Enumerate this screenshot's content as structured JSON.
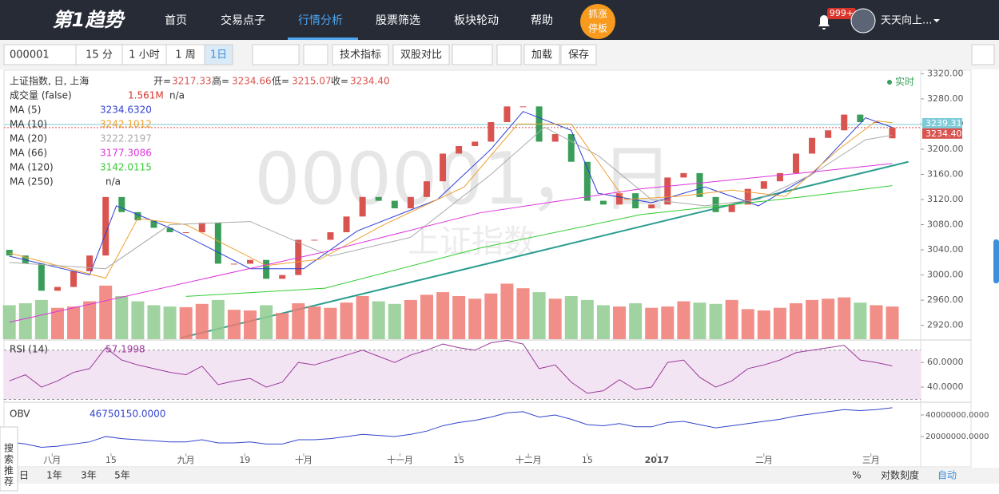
{
  "ui": {
    "logo": "第1趋势",
    "nav": [
      "首页",
      "交易点子",
      "行情分析",
      "股票筛选",
      "板块轮动",
      "帮助"
    ],
    "promo": [
      "抓涨",
      "停板"
    ],
    "badge": "999+",
    "user": "天天向上...",
    "toolbar": {
      "code": "000001",
      "periods": [
        "15 分",
        "1 小时",
        "1 周",
        "1日"
      ],
      "buttons": [
        "技术指标",
        "双股对比",
        "加载",
        "保存"
      ]
    },
    "info": {
      "name": "上证指数, 日, 上海",
      "open_label": "开=",
      "open": "3217.33",
      "high_label": "高=",
      "high": "3234.66",
      "low_label": "低=",
      "low": "3215.07",
      "close_label": "收=",
      "close": "3234.40"
    },
    "volume_legend": {
      "label": "成交量 (false)",
      "value": "1.561M",
      "extra": "n/a"
    },
    "ma250": {
      "label": "MA (250)",
      "value": "n/a"
    },
    "realtime": "实时",
    "watermark": "000001，日",
    "watermark_sub": "上证指数",
    "rsi_legend": {
      "label": "RSI (14)",
      "value": "57.1998"
    },
    "obv_legend": {
      "label": "OBV",
      "value": "46750150.0000"
    },
    "side": "搜索推荐",
    "ranges": [
      "日",
      "1年",
      "3年",
      "5年"
    ],
    "footer": [
      "%",
      "对数刻度",
      "自动"
    ]
  },
  "chart_data": {
    "type": "candlestick",
    "x": [
      0,
      3,
      6,
      9,
      12,
      15,
      18,
      21,
      24,
      27,
      30,
      33,
      36,
      39,
      42,
      45,
      48,
      51,
      54,
      57,
      60,
      63,
      66,
      69,
      72,
      75,
      78,
      81,
      84,
      87,
      90,
      93,
      96,
      99,
      102,
      105,
      108,
      111,
      114,
      117,
      120,
      123,
      126,
      129,
      132,
      135,
      138,
      141,
      144,
      147,
      150,
      153,
      156,
      159,
      162,
      165
    ],
    "open": [
      3040,
      3031,
      3018,
      2975,
      2981,
      3006,
      3031,
      3124,
      3100,
      3087,
      3075,
      3068,
      3068,
      3083,
      3018,
      3018,
      3024,
      2994,
      3000,
      3056,
      3056,
      3068,
      3093,
      3124,
      3118,
      3106,
      3124,
      3149,
      3193,
      3205,
      3212,
      3243,
      3268,
      3268,
      3212,
      3224,
      3180,
      3118,
      3112,
      3130,
      3106,
      3112,
      3155,
      3162,
      3124,
      3100,
      3112,
      3137,
      3149,
      3162,
      3193,
      3218,
      3230,
      3255,
      3243,
      3217.33
    ],
    "close": [
      3031,
      3018,
      2975,
      2981,
      3006,
      3031,
      3124,
      3100,
      3087,
      3075,
      3068,
      3068,
      3083,
      3018,
      3018,
      3024,
      2994,
      3000,
      3056,
      3056,
      3068,
      3093,
      3124,
      3118,
      3106,
      3124,
      3149,
      3193,
      3205,
      3212,
      3243,
      3268,
      3268,
      3212,
      3224,
      3180,
      3118,
      3112,
      3130,
      3106,
      3112,
      3155,
      3162,
      3124,
      3100,
      3112,
      3137,
      3149,
      3162,
      3193,
      3218,
      3230,
      3255,
      3243,
      3243,
      3234.4
    ],
    "volume": [
      52,
      55,
      60,
      48,
      50,
      58,
      82,
      66,
      58,
      52,
      50,
      49,
      54,
      60,
      45,
      44,
      52,
      40,
      55,
      50,
      48,
      56,
      66,
      58,
      54,
      60,
      68,
      72,
      66,
      62,
      70,
      85,
      78,
      72,
      62,
      66,
      60,
      52,
      50,
      55,
      48,
      50,
      58,
      56,
      54,
      60,
      46,
      44,
      48,
      55,
      60,
      62,
      64,
      56,
      52,
      50
    ],
    "ylim": [
      2898,
      3323
    ],
    "xlim": [
      -1,
      170
    ],
    "vlim": [
      0,
      110
    ],
    "yticks": [
      {
        "value": 3320,
        "label": "3320.00"
      },
      {
        "value": 3280,
        "label": "3280.00"
      },
      {
        "value": 3240,
        "label": "3240.00"
      },
      {
        "value": 3200,
        "label": "3200.00"
      },
      {
        "value": 3160,
        "label": "3160.00"
      },
      {
        "value": 3120,
        "label": "3120.00"
      },
      {
        "value": 3080,
        "label": "3080.00"
      },
      {
        "value": 3040,
        "label": "3040.00"
      },
      {
        "value": 3000,
        "label": "3000.00"
      },
      {
        "value": 2960,
        "label": "2960.00"
      },
      {
        "value": 2920,
        "label": "2920.00"
      }
    ],
    "xticks": [
      {
        "value": 8,
        "label": "八月"
      },
      {
        "value": 19,
        "label": "15"
      },
      {
        "value": 33,
        "label": "九月"
      },
      {
        "value": 44,
        "label": "19"
      },
      {
        "value": 55,
        "label": "十月"
      },
      {
        "value": 73,
        "label": "十一月"
      },
      {
        "value": 84,
        "label": "15"
      },
      {
        "value": 97,
        "label": "十二月"
      },
      {
        "value": 108,
        "label": "15"
      },
      {
        "value": 121,
        "label": "2017"
      },
      {
        "value": 141,
        "label": "二月"
      },
      {
        "value": 161,
        "label": "三月"
      }
    ],
    "up_color": "#ee7a72",
    "down_color": "#8fcb8f",
    "series": [
      {
        "name": "MA (5)",
        "legend_value": "3234.6320",
        "color": "#2f3fd6",
        "x": [
          0,
          15,
          20,
          30,
          45,
          55,
          65,
          80,
          90,
          96,
          105,
          110,
          120,
          130,
          140,
          150,
          160,
          165
        ],
        "values": [
          3030,
          3000,
          3110,
          3075,
          3010,
          3010,
          3070,
          3120,
          3200,
          3260,
          3230,
          3130,
          3115,
          3140,
          3110,
          3160,
          3250,
          3234.632
        ]
      },
      {
        "name": "MA (10)",
        "legend_value": "3242.1012",
        "color": "#f0a030",
        "x": [
          0,
          18,
          24,
          33,
          48,
          58,
          70,
          85,
          95,
          105,
          115,
          125,
          135,
          145,
          155,
          162,
          165
        ],
        "values": [
          3035,
          2995,
          3090,
          3080,
          3015,
          3025,
          3080,
          3140,
          3240,
          3240,
          3120,
          3125,
          3135,
          3125,
          3200,
          3245,
          3242.1012
        ]
      },
      {
        "name": "MA (20)",
        "legend_value": "3222.2197",
        "color": "#aaaaaa",
        "x": [
          0,
          18,
          30,
          45,
          60,
          75,
          90,
          100,
          110,
          120,
          130,
          140,
          150,
          160,
          165
        ],
        "values": [
          3020,
          3010,
          3080,
          3085,
          3030,
          3060,
          3160,
          3235,
          3190,
          3120,
          3110,
          3120,
          3160,
          3215,
          3222.2197
        ]
      },
      {
        "name": "MA (66)",
        "legend_value": "3177.3086",
        "color": "#dd33dd",
        "x": [
          0,
          59,
          88,
          118,
          148,
          165
        ],
        "values": [
          2925,
          3037,
          3099,
          3137,
          3162,
          3177.3086
        ]
      },
      {
        "name": "MA (120)",
        "legend_value": "3142.0115",
        "color": "#33cc33",
        "x": [
          33,
          59,
          88,
          118,
          148,
          165
        ],
        "values": [
          2966,
          2979,
          3043,
          3096,
          3124,
          3142.0115
        ]
      }
    ],
    "trendline": {
      "x": [
        32,
        168
      ],
      "values": [
        2900,
        3180
      ],
      "color": "#2a9d8f"
    },
    "price_lines": [
      {
        "value": 3239.31,
        "label": "3239.31",
        "color": "#7ecbd8"
      },
      {
        "value": 3234.4,
        "label": "3234.40",
        "color": "#d9534f"
      }
    ],
    "rsi": {
      "values": [
        45,
        50,
        40,
        45,
        52,
        55,
        72,
        62,
        58,
        55,
        52,
        50,
        57,
        42,
        45,
        47,
        40,
        44,
        60,
        58,
        62,
        66,
        70,
        65,
        60,
        66,
        70,
        75,
        72,
        70,
        76,
        78,
        75,
        55,
        58,
        44,
        35,
        37,
        46,
        38,
        40,
        60,
        62,
        48,
        40,
        45,
        55,
        58,
        62,
        68,
        70,
        72,
        74,
        62,
        60,
        57.1998
      ],
      "ylim": [
        29,
        77
      ],
      "band": [
        30,
        70
      ],
      "yticks": [
        {
          "value": 60,
          "label": "60.0000"
        },
        {
          "value": 40,
          "label": "40.0000"
        }
      ],
      "color": "#9b3b9b"
    },
    "obv": {
      "values": [
        15000000,
        13000000,
        10000000,
        11000000,
        13000000,
        15000000,
        20000000,
        18000000,
        17000000,
        16000000,
        15000000,
        15000000,
        17000000,
        14000000,
        14000000,
        15000000,
        13000000,
        13000000,
        17000000,
        17000000,
        18000000,
        20000000,
        22000000,
        21000000,
        20000000,
        22000000,
        25000000,
        30000000,
        33000000,
        35000000,
        38000000,
        42000000,
        43000000,
        38000000,
        40000000,
        36000000,
        31000000,
        30000000,
        32000000,
        29000000,
        29000000,
        33000000,
        34000000,
        31000000,
        28000000,
        30000000,
        32000000,
        34000000,
        36000000,
        39000000,
        41000000,
        43000000,
        45000000,
        44000000,
        45000000,
        46750150
      ],
      "ylim": [
        4400000,
        49600000
      ],
      "yticks": [
        {
          "value": 40000000,
          "label": "40000000.0000"
        },
        {
          "value": 20000000,
          "label": "20000000.0000"
        }
      ],
      "color": "#3344cc"
    }
  }
}
